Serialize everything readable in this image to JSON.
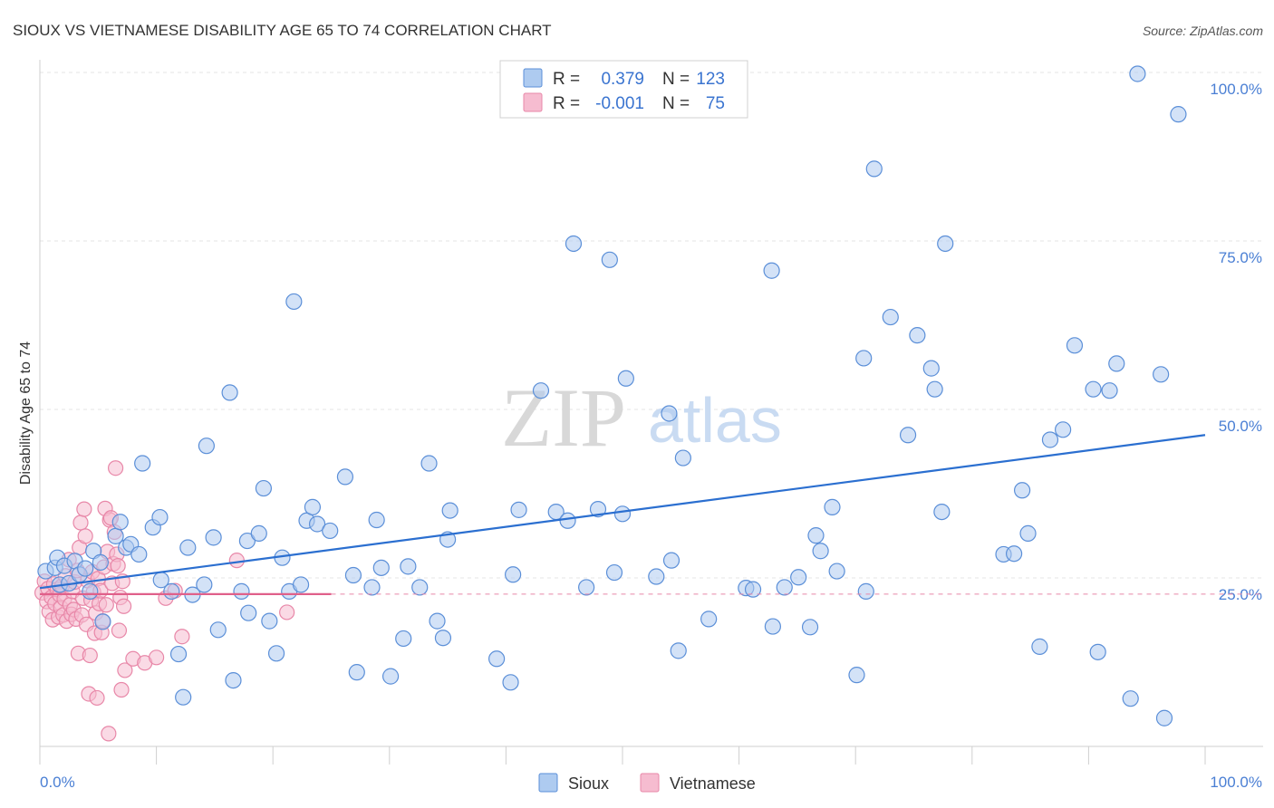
{
  "title": "SIOUX VS VIETNAMESE DISABILITY AGE 65 TO 74 CORRELATION CHART",
  "source": "Source: ZipAtlas.com",
  "watermark": {
    "zip": "ZIP",
    "atlas": "atlas"
  },
  "legend_stats": [
    {
      "r_label": "R =",
      "r_value": "0.379",
      "n_label": "N =",
      "n_value": "123"
    },
    {
      "r_label": "R =",
      "r_value": "-0.001",
      "n_label": "N =",
      "n_value": "75"
    }
  ],
  "colors": {
    "sioux_fill": "#aecbf0",
    "sioux_stroke": "#5b8fd8",
    "sioux_line": "#2b6fd0",
    "viet_fill": "#f6bcd0",
    "viet_stroke": "#e887a8",
    "viet_line": "#e0608a",
    "grid": "#e4e4e4",
    "tick_text": "#4a7fd4"
  },
  "chart_data": {
    "type": "scatter",
    "title": "SIOUX VS VIETNAMESE DISABILITY AGE 65 TO 74 CORRELATION CHART",
    "xlabel": "",
    "ylabel": "Disability Age 65 to 74",
    "xlim": [
      0,
      100
    ],
    "ylim": [
      0,
      100
    ],
    "x_tick_labels": [
      "0.0%",
      "100.0%"
    ],
    "y_tick_labels": [
      "25.0%",
      "50.0%",
      "75.0%",
      "100.0%"
    ],
    "y_ticks": [
      25,
      50,
      75,
      100
    ],
    "grid": true,
    "legend_position": "bottom",
    "series": [
      {
        "name": "Sioux",
        "r": 0.379,
        "n": 123,
        "trend": {
          "x": [
            0,
            100
          ],
          "y": [
            23.5,
            46.2
          ]
        },
        "points": [
          [
            0.5,
            26
          ],
          [
            1.3,
            26.5
          ],
          [
            1.5,
            28
          ],
          [
            1.7,
            24
          ],
          [
            2.1,
            26.8
          ],
          [
            2.5,
            24.2
          ],
          [
            3,
            27.5
          ],
          [
            3.4,
            25.5
          ],
          [
            3.9,
            26.4
          ],
          [
            4.3,
            23
          ],
          [
            4.6,
            29
          ],
          [
            5.2,
            27.3
          ],
          [
            5.4,
            18.5
          ],
          [
            6.5,
            31.2
          ],
          [
            6.9,
            33.3
          ],
          [
            7.4,
            29.5
          ],
          [
            7.8,
            30
          ],
          [
            8.5,
            28.5
          ],
          [
            8.8,
            42
          ],
          [
            9.7,
            32.5
          ],
          [
            10.3,
            34
          ],
          [
            10.4,
            24.7
          ],
          [
            11.3,
            23
          ],
          [
            11.9,
            13.7
          ],
          [
            12.3,
            7.3
          ],
          [
            12.7,
            29.5
          ],
          [
            13.1,
            22.5
          ],
          [
            14.1,
            24
          ],
          [
            14.3,
            44.6
          ],
          [
            14.9,
            31
          ],
          [
            15.3,
            17.3
          ],
          [
            16.3,
            52.5
          ],
          [
            16.6,
            9.8
          ],
          [
            17.3,
            23
          ],
          [
            17.8,
            30.5
          ],
          [
            17.9,
            19.8
          ],
          [
            18.8,
            31.6
          ],
          [
            19.2,
            38.3
          ],
          [
            19.7,
            18.6
          ],
          [
            20.3,
            13.8
          ],
          [
            20.8,
            28
          ],
          [
            21.4,
            23
          ],
          [
            21.8,
            66
          ],
          [
            22.4,
            24
          ],
          [
            22.9,
            33.5
          ],
          [
            23.4,
            35.5
          ],
          [
            23.8,
            33
          ],
          [
            24.9,
            32
          ],
          [
            26.2,
            40
          ],
          [
            26.9,
            25.4
          ],
          [
            27.2,
            11
          ],
          [
            28.5,
            23.6
          ],
          [
            28.9,
            33.6
          ],
          [
            29.3,
            26.5
          ],
          [
            30.1,
            10.4
          ],
          [
            31.2,
            16
          ],
          [
            31.6,
            26.7
          ],
          [
            32.6,
            23.6
          ],
          [
            33.4,
            42
          ],
          [
            34.1,
            18.6
          ],
          [
            34.6,
            16.1
          ],
          [
            35,
            30.7
          ],
          [
            35.2,
            35
          ],
          [
            39.2,
            13
          ],
          [
            40.4,
            9.5
          ],
          [
            40.6,
            25.5
          ],
          [
            41.1,
            35.1
          ],
          [
            43,
            52.8
          ],
          [
            44.3,
            34.8
          ],
          [
            45.3,
            33.5
          ],
          [
            45.8,
            74.6
          ],
          [
            46.9,
            23.6
          ],
          [
            47.9,
            35.2
          ],
          [
            48.9,
            72.2
          ],
          [
            49.3,
            25.8
          ],
          [
            50,
            34.5
          ],
          [
            50.3,
            54.6
          ],
          [
            52.9,
            25.2
          ],
          [
            54,
            49.4
          ],
          [
            54.2,
            27.6
          ],
          [
            54.8,
            14.2
          ],
          [
            55.2,
            42.8
          ],
          [
            57.4,
            18.9
          ],
          [
            60.6,
            23.5
          ],
          [
            61.2,
            23.3
          ],
          [
            62.8,
            70.6
          ],
          [
            62.9,
            17.8
          ],
          [
            63.9,
            23.6
          ],
          [
            65.1,
            25.1
          ],
          [
            66.1,
            17.7
          ],
          [
            66.6,
            31.3
          ],
          [
            67,
            29
          ],
          [
            68,
            35.5
          ],
          [
            68.4,
            26
          ],
          [
            70.1,
            10.6
          ],
          [
            70.7,
            57.6
          ],
          [
            70.9,
            23
          ],
          [
            71.6,
            85.7
          ],
          [
            73,
            63.7
          ],
          [
            74.5,
            46.2
          ],
          [
            75.3,
            61
          ],
          [
            76.5,
            56.1
          ],
          [
            76.8,
            53
          ],
          [
            77.4,
            34.8
          ],
          [
            77.7,
            74.6
          ],
          [
            82.7,
            28.5
          ],
          [
            83.6,
            28.6
          ],
          [
            84.3,
            38
          ],
          [
            84.8,
            31.6
          ],
          [
            85.8,
            14.8
          ],
          [
            86.7,
            45.5
          ],
          [
            87.8,
            47
          ],
          [
            88.8,
            59.5
          ],
          [
            90.4,
            53
          ],
          [
            90.8,
            14
          ],
          [
            91.8,
            52.8
          ],
          [
            92.4,
            56.8
          ],
          [
            93.6,
            7.1
          ],
          [
            94.2,
            99.8
          ],
          [
            96.2,
            55.2
          ],
          [
            96.5,
            4.2
          ],
          [
            97.7,
            93.8
          ]
        ]
      },
      {
        "name": "Vietnamese",
        "r": -0.001,
        "n": 75,
        "trend": {
          "x": [
            0,
            25
          ],
          "y": [
            22.6,
            22.6
          ]
        },
        "points": [
          [
            0.2,
            22.8
          ],
          [
            0.4,
            24.5
          ],
          [
            0.6,
            21.5
          ],
          [
            0.7,
            23.4
          ],
          [
            0.8,
            20
          ],
          [
            1,
            22.1
          ],
          [
            1.1,
            18.8
          ],
          [
            1.2,
            24.1
          ],
          [
            1.3,
            21.2
          ],
          [
            1.5,
            23.3
          ],
          [
            1.6,
            19.2
          ],
          [
            1.7,
            22.5
          ],
          [
            1.8,
            20.6
          ],
          [
            1.9,
            23.8
          ],
          [
            2,
            19.5
          ],
          [
            2.1,
            21.9
          ],
          [
            2.2,
            25.3
          ],
          [
            2.3,
            18.6
          ],
          [
            2.5,
            27.7
          ],
          [
            2.6,
            21
          ],
          [
            2.7,
            19.6
          ],
          [
            2.8,
            23
          ],
          [
            2.9,
            20.3
          ],
          [
            3,
            24.4
          ],
          [
            3.1,
            18.9
          ],
          [
            3.2,
            26.1
          ],
          [
            3.3,
            13.8
          ],
          [
            3.4,
            29.5
          ],
          [
            3.5,
            33.2
          ],
          [
            3.6,
            19.5
          ],
          [
            3.7,
            22
          ],
          [
            3.8,
            35.2
          ],
          [
            3.9,
            31.2
          ],
          [
            4,
            18.1
          ],
          [
            4.1,
            24.6
          ],
          [
            4.2,
            7.8
          ],
          [
            4.3,
            13.5
          ],
          [
            4.4,
            21.7
          ],
          [
            4.5,
            25.9
          ],
          [
            4.6,
            22.9
          ],
          [
            4.7,
            16.8
          ],
          [
            4.8,
            19.8
          ],
          [
            4.9,
            7.2
          ],
          [
            5,
            24.9
          ],
          [
            5.1,
            21.2
          ],
          [
            5.2,
            23.1
          ],
          [
            5.3,
            16.9
          ],
          [
            5.4,
            18.6
          ],
          [
            5.5,
            26.6
          ],
          [
            5.6,
            35.3
          ],
          [
            5.7,
            21
          ],
          [
            5.8,
            28.9
          ],
          [
            5.9,
            1.9
          ],
          [
            6,
            33.6
          ],
          [
            6.1,
            33.9
          ],
          [
            6.2,
            24.2
          ],
          [
            6.3,
            27.1
          ],
          [
            6.4,
            31.8
          ],
          [
            6.5,
            41.3
          ],
          [
            6.6,
            28.5
          ],
          [
            6.7,
            26.8
          ],
          [
            6.8,
            17.2
          ],
          [
            6.9,
            22.1
          ],
          [
            7,
            8.4
          ],
          [
            7.1,
            24.5
          ],
          [
            7.2,
            20.8
          ],
          [
            7.3,
            11.3
          ],
          [
            8,
            13
          ],
          [
            9,
            12.4
          ],
          [
            10,
            13.2
          ],
          [
            10.8,
            22
          ],
          [
            11.6,
            23.1
          ],
          [
            12.2,
            16.3
          ],
          [
            16.9,
            27.6
          ],
          [
            21.2,
            19.9
          ]
        ]
      }
    ]
  },
  "bottom_legend": [
    {
      "label": "Sioux"
    },
    {
      "label": "Vietnamese"
    }
  ]
}
